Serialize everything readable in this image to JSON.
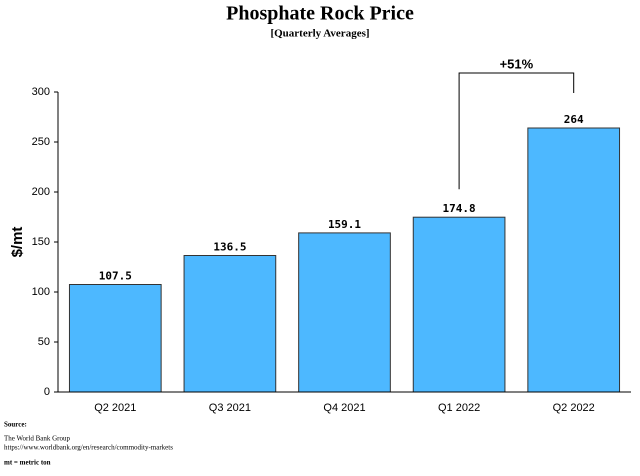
{
  "chart_data": {
    "type": "bar",
    "title": "Phosphate Rock Price",
    "subtitle": "[Quarterly Averages]",
    "y_label": "$/mt",
    "categories": [
      "Q2 2021",
      "Q3 2021",
      "Q4 2021",
      "Q1 2022",
      "Q2 2022"
    ],
    "values": [
      107.5,
      136.5,
      159.1,
      174.8,
      264
    ],
    "color": "#4db8ff",
    "ylim": [
      0,
      300
    ],
    "yticks": [
      0,
      50,
      100,
      150,
      200,
      250,
      300
    ],
    "grid": false,
    "annotation": "+51%",
    "source_label": "Source:",
    "source_lines": [
      "The World Bank Group",
      "https://www.worldbank.org/en/research/commodity-markets"
    ],
    "note": "mt = metric ton"
  }
}
